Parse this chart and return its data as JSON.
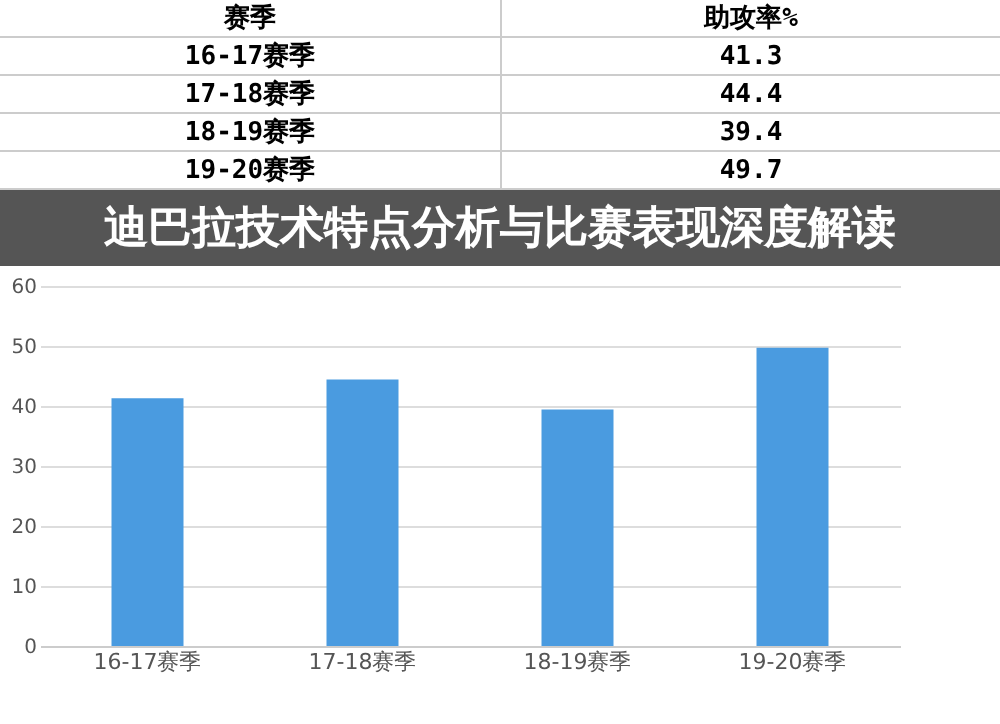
{
  "chart_data": [
    {
      "type": "other",
      "annotations": [
        "赛季",
        "助攻率%",
        "16-17赛季",
        "41.3",
        "17-18赛季",
        "44.4",
        "18-19赛季",
        "39.4",
        "19-20赛季",
        "49.7"
      ]
    },
    {
      "type": "bar",
      "title": "迪巴拉技术特点分析与比赛表现深度解读",
      "categories": [
        "16-17赛季",
        "17-18赛季",
        "18-19赛季",
        "19-20赛季"
      ],
      "values": [
        41.3,
        44.4,
        39.4,
        49.7
      ],
      "color": "#4a9be0",
      "ylim": [
        0,
        60
      ],
      "yticks": [
        0,
        10,
        20,
        30,
        40,
        50,
        60
      ],
      "grid": "y"
    }
  ]
}
